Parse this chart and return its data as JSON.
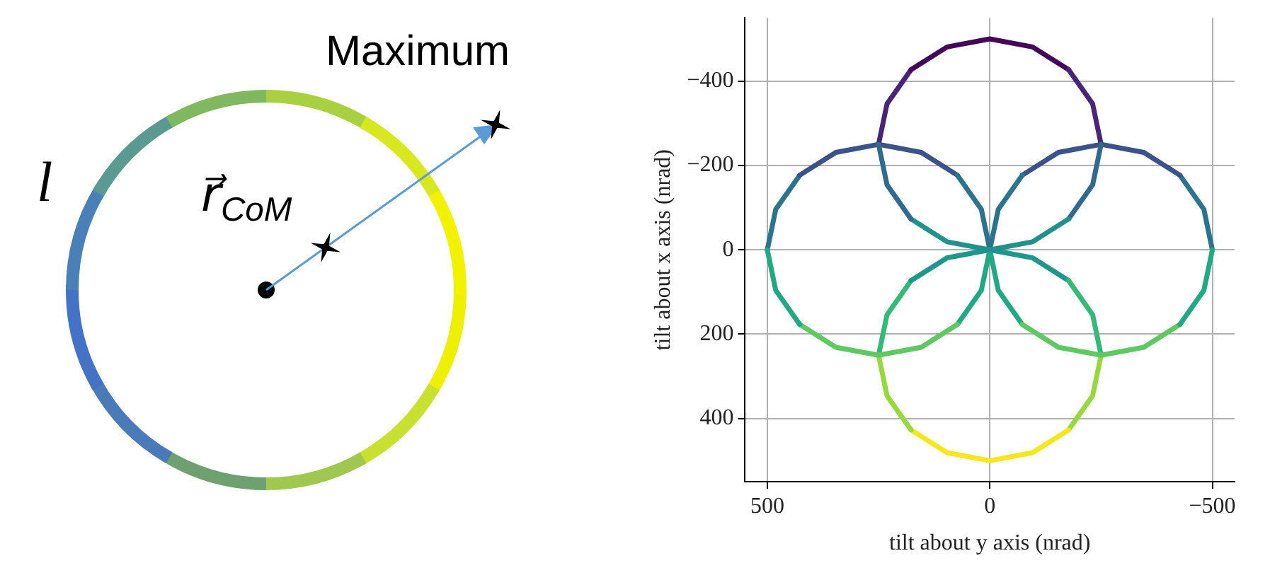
{
  "chart_data": {
    "type": "line",
    "xlabel": "tilt about y axis (nrad)",
    "ylabel": "tilt about x axis (nrad)",
    "annotations": [
      "Maximum",
      "l",
      "r⃗$_{CoM}$"
    ],
    "series": [
      {
        "x": [
          250,
          231,
          177
        ],
        "values": [
          -250,
          -154,
          -73
        ],
        "color": "#306a8e"
      },
      {
        "x": [
          177,
          96,
          0,
          -96,
          -177
        ],
        "values": [
          -73,
          -19,
          0,
          -19,
          -73
        ],
        "color": "#21918c"
      },
      {
        "x": [
          -177,
          -231,
          -250
        ],
        "values": [
          -73,
          -154,
          -250
        ],
        "color": "#306a8e"
      },
      {
        "x": [
          -250,
          -231,
          -177
        ],
        "values": [
          -250,
          -346,
          -427
        ],
        "color": "#482576"
      },
      {
        "x": [
          -177,
          -96,
          0,
          96,
          177
        ],
        "values": [
          -427,
          -481,
          -500,
          -481,
          -427
        ],
        "color": "#450559"
      },
      {
        "x": [
          177,
          231,
          250
        ],
        "values": [
          -427,
          -346,
          -250
        ],
        "color": "#482576"
      },
      {
        "x": [
          500,
          481,
          427
        ],
        "values": [
          0,
          96,
          177
        ],
        "color": "#23a884"
      },
      {
        "x": [
          427,
          346,
          250,
          154,
          73
        ],
        "values": [
          177,
          231,
          250,
          231,
          177
        ],
        "color": "#5ec962"
      },
      {
        "x": [
          73,
          19,
          0
        ],
        "values": [
          177,
          96,
          0
        ],
        "color": "#23a884"
      },
      {
        "x": [
          0,
          19,
          73
        ],
        "values": [
          0,
          -96,
          -177
        ],
        "color": "#2c738e"
      },
      {
        "x": [
          73,
          154,
          250,
          346,
          427
        ],
        "values": [
          -177,
          -231,
          -250,
          -231,
          -177
        ],
        "color": "#3b528b"
      },
      {
        "x": [
          427,
          481,
          500
        ],
        "values": [
          -177,
          -96,
          0
        ],
        "color": "#2c738e"
      },
      {
        "x": [
          -500,
          -481,
          -427
        ],
        "values": [
          0,
          96,
          177
        ],
        "color": "#23a884"
      },
      {
        "x": [
          -427,
          -346,
          -250,
          -154,
          -73
        ],
        "values": [
          177,
          231,
          250,
          231,
          177
        ],
        "color": "#5ec962"
      },
      {
        "x": [
          -73,
          -19,
          0
        ],
        "values": [
          177,
          96,
          0
        ],
        "color": "#23a884"
      },
      {
        "x": [
          0,
          -19,
          -73
        ],
        "values": [
          0,
          -96,
          -177
        ],
        "color": "#2c738e"
      },
      {
        "x": [
          -73,
          -154,
          -250,
          -346,
          -427
        ],
        "values": [
          -177,
          -231,
          -250,
          -231,
          -177
        ],
        "color": "#3b528b"
      },
      {
        "x": [
          -427,
          -481,
          -500
        ],
        "values": [
          -177,
          -96,
          0
        ],
        "color": "#2c738e"
      },
      {
        "x": [
          250,
          231,
          177
        ],
        "values": [
          250,
          346,
          427
        ],
        "color": "#97d83f"
      },
      {
        "x": [
          177,
          96,
          0,
          -96,
          -177
        ],
        "values": [
          427,
          481,
          500,
          481,
          427
        ],
        "color": "#f5e61e"
      },
      {
        "x": [
          -177,
          -231,
          -250
        ],
        "values": [
          427,
          346,
          250
        ],
        "color": "#97d83f"
      },
      {
        "x": [
          -250,
          -231,
          -177
        ],
        "values": [
          250,
          154,
          73
        ],
        "color": "#36b878"
      },
      {
        "x": [
          -177,
          -96,
          0,
          96,
          177
        ],
        "values": [
          73,
          19,
          0,
          19,
          73
        ],
        "color": "#1f978b"
      },
      {
        "x": [
          177,
          231,
          250
        ],
        "values": [
          73,
          154,
          250
        ],
        "color": "#36b878"
      }
    ],
    "xlim": [
      550,
      -550
    ],
    "xticks": [
      500,
      0,
      {
        "value": -500,
        "label": "−500"
      }
    ],
    "ylim": [
      550,
      -550
    ],
    "yticks": [
      {
        "value": -400,
        "label": "−400"
      },
      {
        "value": -200,
        "label": "−200"
      },
      0,
      200,
      400
    ],
    "grid": true,
    "legend": false,
    "marker": "none",
    "line_style": "solid"
  }
}
